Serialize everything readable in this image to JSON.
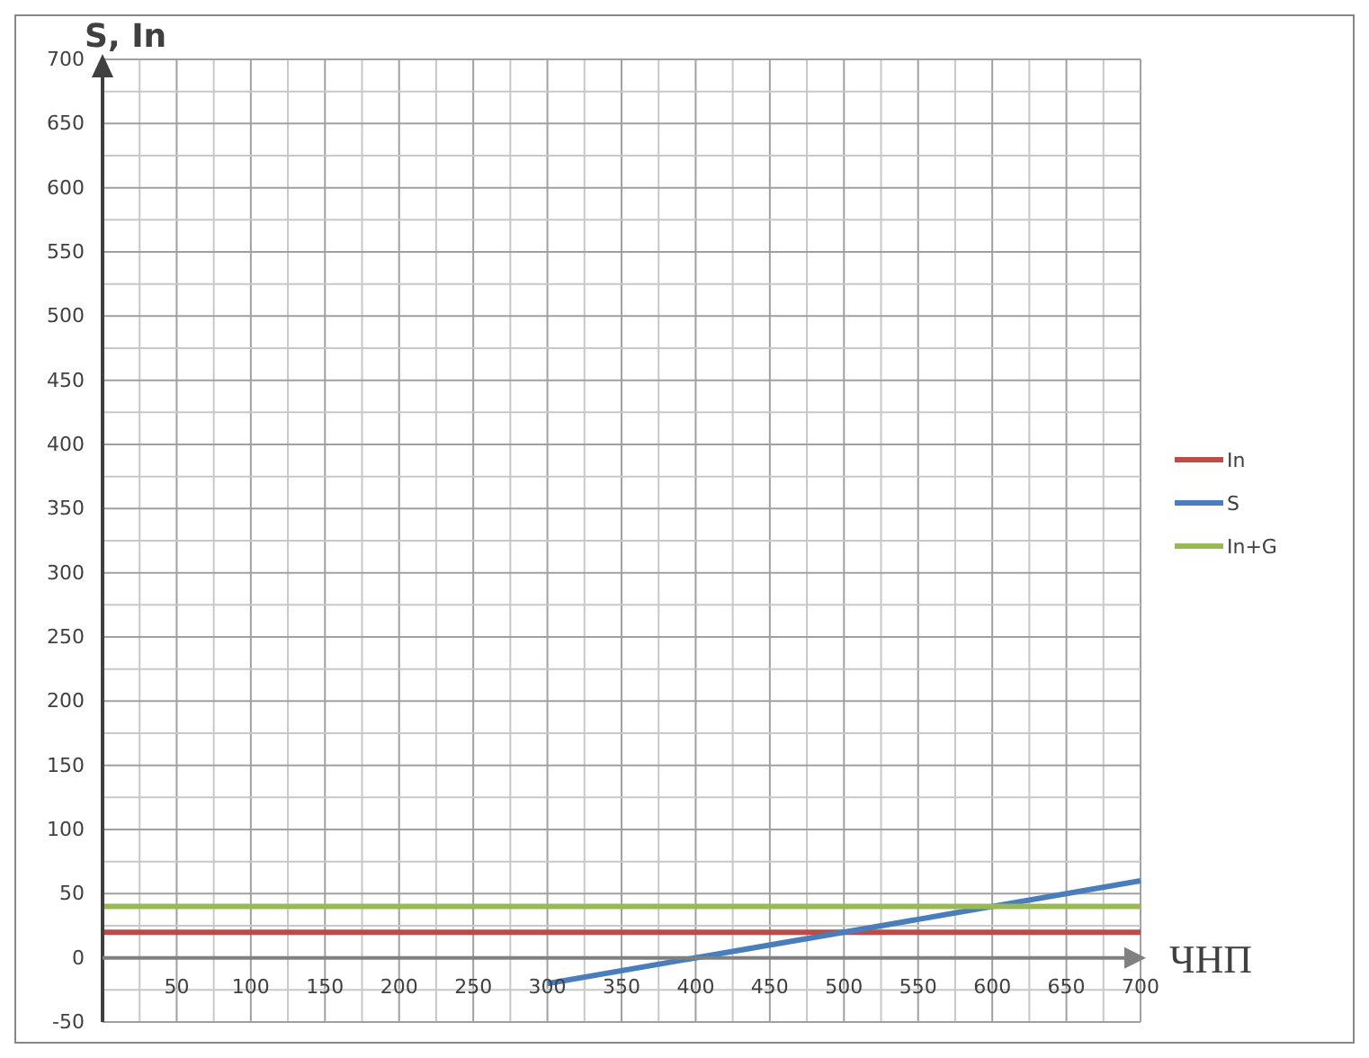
{
  "chart_data": {
    "type": "line",
    "ylabel": "S, In",
    "xlabel": "ЧНП",
    "xlim": [
      0,
      700
    ],
    "xticks": [
      50,
      100,
      150,
      200,
      250,
      300,
      350,
      400,
      450,
      500,
      550,
      600,
      650,
      700
    ],
    "ylim": [
      -50,
      700
    ],
    "yticks": [
      -50,
      0,
      50,
      100,
      150,
      200,
      250,
      300,
      350,
      400,
      450,
      500,
      550,
      600,
      650,
      700
    ],
    "grid": true,
    "legend": "right",
    "marker": "none",
    "line_style": "solid",
    "series": [
      {
        "name": "In",
        "color": "#be4b48",
        "x": [
          0,
          700
        ],
        "values": [
          20,
          20
        ]
      },
      {
        "name": "S",
        "color": "#4a7ebb",
        "x": [
          300,
          700
        ],
        "values": [
          -20,
          60
        ]
      },
      {
        "name": "In+G",
        "color": "#98b954",
        "x": [
          0,
          700
        ],
        "values": [
          40,
          40
        ]
      }
    ]
  }
}
